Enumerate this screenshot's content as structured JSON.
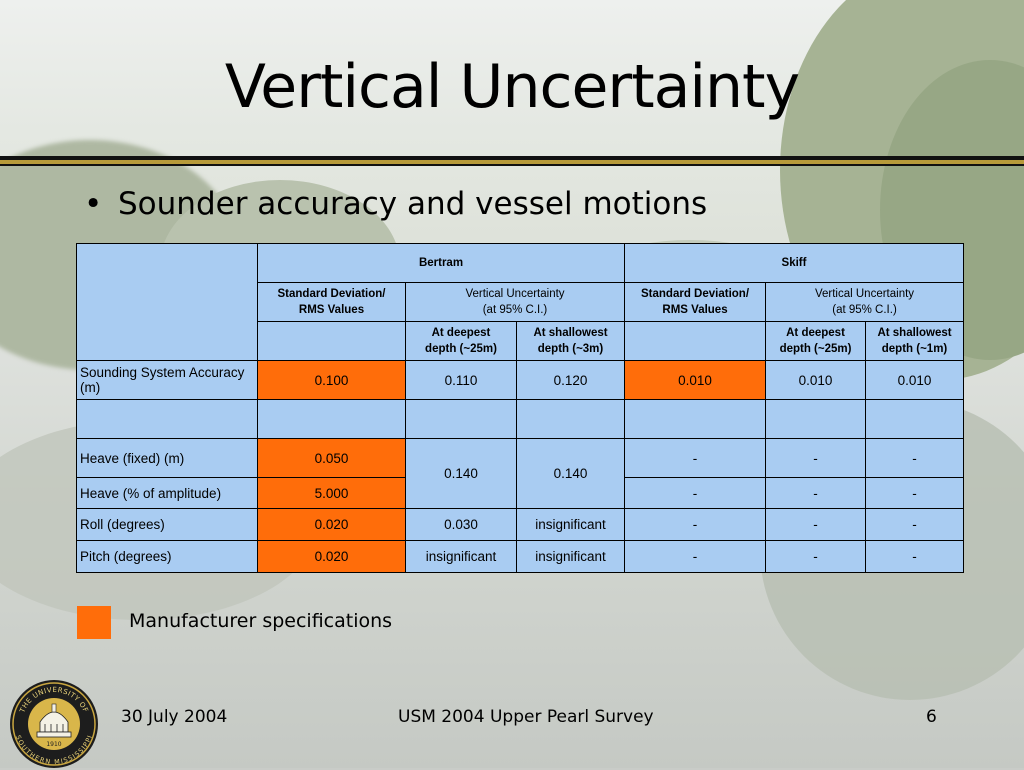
{
  "slide": {
    "title": "Vertical Uncertainty",
    "bullet": "Sounder accuracy and vessel motions",
    "legend_label": "Manufacturer specifications",
    "footer": {
      "date": "30 July 2004",
      "center": "USM 2004 Upper Pearl Survey",
      "page": "6"
    },
    "seal": {
      "top_text": "THE UNIVERSITY OF",
      "bottom_text": "SOUTHERN MISSISSIPPI",
      "year": "1910"
    },
    "colors": {
      "table_fill": "#a9ccf2",
      "manufacturer_highlight": "#ff6d0a",
      "rule_gold": "#b79a3a"
    }
  },
  "table": {
    "groups": [
      "Bertram",
      "Skiff"
    ],
    "subheaders": {
      "std_dev": [
        "Standard Deviation/",
        "RMS Values"
      ],
      "vert_unc": [
        "Vertical Uncertainty",
        "(at 95% C.I.)"
      ]
    },
    "depths": {
      "bertram_deep": [
        "At deepest",
        "depth (~25m)"
      ],
      "bertram_shallow": [
        "At shallowest",
        "depth (~3m)"
      ],
      "skiff_deep": [
        "At deepest",
        "depth (~25m)"
      ],
      "skiff_shallow": [
        "At shallowest",
        "depth (~1m)"
      ]
    },
    "rows": {
      "sounding": {
        "label": "Sounding System Accuracy (m)",
        "b_std": "0.100",
        "b_deep": "0.110",
        "b_shallow": "0.120",
        "s_std": "0.010",
        "s_deep": "0.010",
        "s_shallow": "0.010"
      },
      "heave_fixed": {
        "label": "Heave (fixed) (m)",
        "b_std": "0.050",
        "b_deep": "0.140",
        "b_shallow": "0.140",
        "s_std": "-",
        "s_deep": "-",
        "s_shallow": "-"
      },
      "heave_pct": {
        "label": "Heave (% of amplitude)",
        "b_std": "5.000",
        "s_std": "-",
        "s_deep": "-",
        "s_shallow": "-"
      },
      "roll": {
        "label": "Roll (degrees)",
        "b_std": "0.020",
        "b_deep": "0.030",
        "b_shallow": "insignificant",
        "s_std": "-",
        "s_deep": "-",
        "s_shallow": "-"
      },
      "pitch": {
        "label": "Pitch (degrees)",
        "b_std": "0.020",
        "b_deep": "insignificant",
        "b_shallow": "insignificant",
        "s_std": "-",
        "s_deep": "-",
        "s_shallow": "-"
      }
    }
  }
}
